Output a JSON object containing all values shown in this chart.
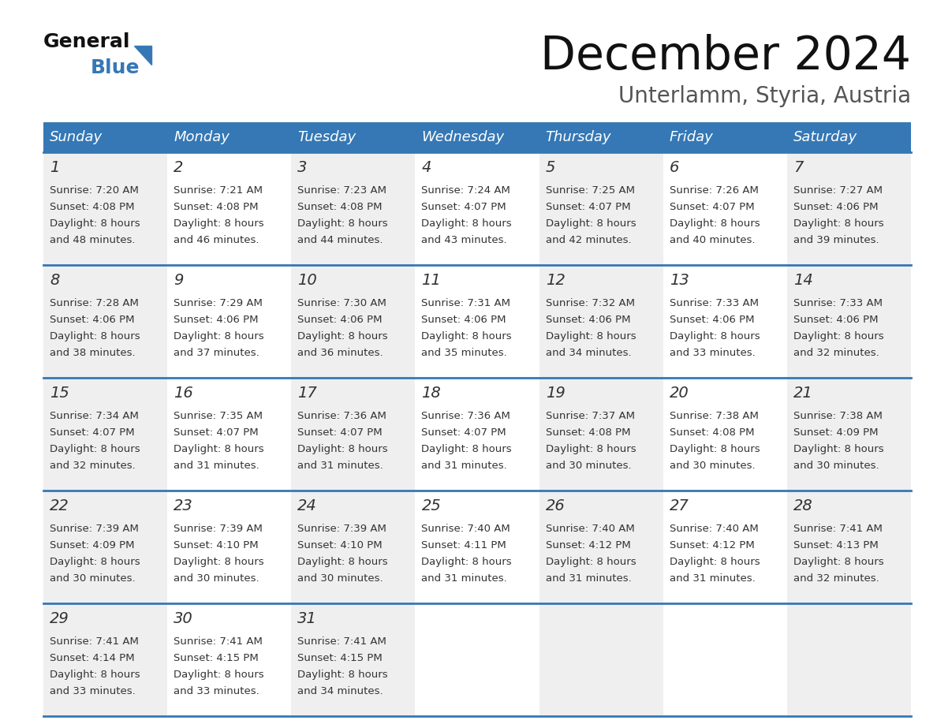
{
  "title": "December 2024",
  "subtitle": "Unterlamm, Styria, Austria",
  "header_color": "#3578b5",
  "header_text_color": "#ffffff",
  "day_names": [
    "Sunday",
    "Monday",
    "Tuesday",
    "Wednesday",
    "Thursday",
    "Friday",
    "Saturday"
  ],
  "cell_bg_col0": "#efefef",
  "cell_bg_col1": "#ffffff",
  "row_sep_color": "#3578b5",
  "text_color": "#333333",
  "logo_general_color": "#111111",
  "logo_blue_color": "#3578b5",
  "logo_triangle_color": "#3578b5",
  "title_color": "#111111",
  "subtitle_color": "#555555",
  "days": [
    {
      "day": 1,
      "col": 0,
      "row": 0,
      "sunrise": "7:20 AM",
      "sunset": "4:08 PM",
      "dl_min": "48"
    },
    {
      "day": 2,
      "col": 1,
      "row": 0,
      "sunrise": "7:21 AM",
      "sunset": "4:08 PM",
      "dl_min": "46"
    },
    {
      "day": 3,
      "col": 2,
      "row": 0,
      "sunrise": "7:23 AM",
      "sunset": "4:08 PM",
      "dl_min": "44"
    },
    {
      "day": 4,
      "col": 3,
      "row": 0,
      "sunrise": "7:24 AM",
      "sunset": "4:07 PM",
      "dl_min": "43"
    },
    {
      "day": 5,
      "col": 4,
      "row": 0,
      "sunrise": "7:25 AM",
      "sunset": "4:07 PM",
      "dl_min": "42"
    },
    {
      "day": 6,
      "col": 5,
      "row": 0,
      "sunrise": "7:26 AM",
      "sunset": "4:07 PM",
      "dl_min": "40"
    },
    {
      "day": 7,
      "col": 6,
      "row": 0,
      "sunrise": "7:27 AM",
      "sunset": "4:06 PM",
      "dl_min": "39"
    },
    {
      "day": 8,
      "col": 0,
      "row": 1,
      "sunrise": "7:28 AM",
      "sunset": "4:06 PM",
      "dl_min": "38"
    },
    {
      "day": 9,
      "col": 1,
      "row": 1,
      "sunrise": "7:29 AM",
      "sunset": "4:06 PM",
      "dl_min": "37"
    },
    {
      "day": 10,
      "col": 2,
      "row": 1,
      "sunrise": "7:30 AM",
      "sunset": "4:06 PM",
      "dl_min": "36"
    },
    {
      "day": 11,
      "col": 3,
      "row": 1,
      "sunrise": "7:31 AM",
      "sunset": "4:06 PM",
      "dl_min": "35"
    },
    {
      "day": 12,
      "col": 4,
      "row": 1,
      "sunrise": "7:32 AM",
      "sunset": "4:06 PM",
      "dl_min": "34"
    },
    {
      "day": 13,
      "col": 5,
      "row": 1,
      "sunrise": "7:33 AM",
      "sunset": "4:06 PM",
      "dl_min": "33"
    },
    {
      "day": 14,
      "col": 6,
      "row": 1,
      "sunrise": "7:33 AM",
      "sunset": "4:06 PM",
      "dl_min": "32"
    },
    {
      "day": 15,
      "col": 0,
      "row": 2,
      "sunrise": "7:34 AM",
      "sunset": "4:07 PM",
      "dl_min": "32"
    },
    {
      "day": 16,
      "col": 1,
      "row": 2,
      "sunrise": "7:35 AM",
      "sunset": "4:07 PM",
      "dl_min": "31"
    },
    {
      "day": 17,
      "col": 2,
      "row": 2,
      "sunrise": "7:36 AM",
      "sunset": "4:07 PM",
      "dl_min": "31"
    },
    {
      "day": 18,
      "col": 3,
      "row": 2,
      "sunrise": "7:36 AM",
      "sunset": "4:07 PM",
      "dl_min": "31"
    },
    {
      "day": 19,
      "col": 4,
      "row": 2,
      "sunrise": "7:37 AM",
      "sunset": "4:08 PM",
      "dl_min": "30"
    },
    {
      "day": 20,
      "col": 5,
      "row": 2,
      "sunrise": "7:38 AM",
      "sunset": "4:08 PM",
      "dl_min": "30"
    },
    {
      "day": 21,
      "col": 6,
      "row": 2,
      "sunrise": "7:38 AM",
      "sunset": "4:09 PM",
      "dl_min": "30"
    },
    {
      "day": 22,
      "col": 0,
      "row": 3,
      "sunrise": "7:39 AM",
      "sunset": "4:09 PM",
      "dl_min": "30"
    },
    {
      "day": 23,
      "col": 1,
      "row": 3,
      "sunrise": "7:39 AM",
      "sunset": "4:10 PM",
      "dl_min": "30"
    },
    {
      "day": 24,
      "col": 2,
      "row": 3,
      "sunrise": "7:39 AM",
      "sunset": "4:10 PM",
      "dl_min": "30"
    },
    {
      "day": 25,
      "col": 3,
      "row": 3,
      "sunrise": "7:40 AM",
      "sunset": "4:11 PM",
      "dl_min": "31"
    },
    {
      "day": 26,
      "col": 4,
      "row": 3,
      "sunrise": "7:40 AM",
      "sunset": "4:12 PM",
      "dl_min": "31"
    },
    {
      "day": 27,
      "col": 5,
      "row": 3,
      "sunrise": "7:40 AM",
      "sunset": "4:12 PM",
      "dl_min": "31"
    },
    {
      "day": 28,
      "col": 6,
      "row": 3,
      "sunrise": "7:41 AM",
      "sunset": "4:13 PM",
      "dl_min": "32"
    },
    {
      "day": 29,
      "col": 0,
      "row": 4,
      "sunrise": "7:41 AM",
      "sunset": "4:14 PM",
      "dl_min": "33"
    },
    {
      "day": 30,
      "col": 1,
      "row": 4,
      "sunrise": "7:41 AM",
      "sunset": "4:15 PM",
      "dl_min": "33"
    },
    {
      "day": 31,
      "col": 2,
      "row": 4,
      "sunrise": "7:41 AM",
      "sunset": "4:15 PM",
      "dl_min": "34"
    }
  ],
  "num_rows": 5,
  "num_cols": 7,
  "figw": 11.88,
  "figh": 9.18,
  "dpi": 100
}
